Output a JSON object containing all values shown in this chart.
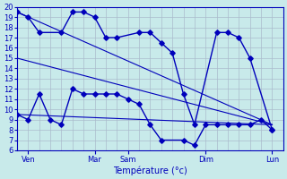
{
  "background_color": "#c8eaea",
  "grid_color": "#aabbcc",
  "line_color": "#0000bb",
  "xlabel": "Température (°c)",
  "ylim": [
    6,
    20
  ],
  "xlim": [
    0,
    24
  ],
  "x_tick_positions": [
    1,
    7,
    10,
    17,
    23
  ],
  "x_tick_labels": [
    "Ven",
    "Mar",
    "Sam",
    "Dim",
    "Lun"
  ],
  "max_x": [
    0,
    1,
    2,
    4,
    5,
    6,
    7,
    8,
    9,
    11,
    12,
    13,
    14,
    15,
    16,
    18,
    19,
    20,
    21,
    23
  ],
  "max_y": [
    19.5,
    19.0,
    17.5,
    17.5,
    19.5,
    19.5,
    19.0,
    17.0,
    17.0,
    17.5,
    17.5,
    16.5,
    15.5,
    11.5,
    8.5,
    17.5,
    17.5,
    17.0,
    15.0,
    8.0
  ],
  "min_x": [
    0,
    1,
    2,
    3,
    4,
    5,
    6,
    7,
    8,
    9,
    10,
    11,
    12,
    13,
    15,
    16,
    17,
    18,
    19,
    20,
    21,
    22,
    23
  ],
  "min_y": [
    9.5,
    9.0,
    11.5,
    9.0,
    8.5,
    12.0,
    11.5,
    11.5,
    11.5,
    11.5,
    11.0,
    10.5,
    8.5,
    7.0,
    7.0,
    6.5,
    8.5,
    8.5,
    8.5,
    8.5,
    8.5,
    9.0,
    8.0
  ],
  "trend1_x": [
    0,
    23
  ],
  "trend1_y": [
    19.5,
    8.5
  ],
  "trend2_x": [
    0,
    23
  ],
  "trend2_y": [
    15.0,
    8.5
  ],
  "trend3_x": [
    0,
    23
  ],
  "trend3_y": [
    9.5,
    8.5
  ]
}
